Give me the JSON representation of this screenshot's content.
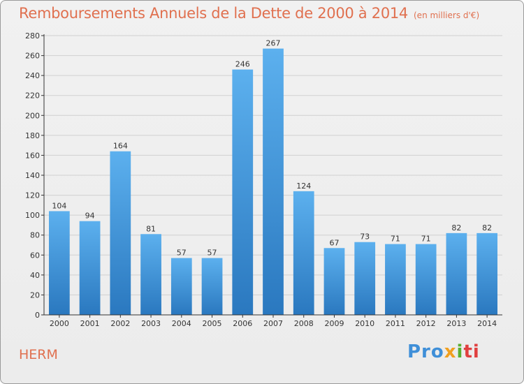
{
  "header": {
    "title": "Remboursements Annuels de la Dette de 2000 à 2014",
    "subtitle": "(en milliers d'€)"
  },
  "footer": {
    "commune": "HERM",
    "logo": {
      "p1": "Pro",
      "p2": "x",
      "p3": "i",
      "p4": "ti"
    }
  },
  "colors": {
    "title": "#e0704f",
    "bar_top": "#5cb0ee",
    "bar_bottom": "#2a78bf",
    "grid": "#d0d0d0",
    "axis": "#333333"
  },
  "chart_data": {
    "type": "bar",
    "title": "Remboursements Annuels de la Dette de 2000 à 2014",
    "subtitle": "(en milliers d'€)",
    "xlabel": "",
    "ylabel": "",
    "categories": [
      "2000",
      "2001",
      "2002",
      "2003",
      "2004",
      "2005",
      "2006",
      "2007",
      "2008",
      "2009",
      "2010",
      "2011",
      "2012",
      "2013",
      "2014"
    ],
    "values": [
      104,
      94,
      164,
      81,
      57,
      57,
      246,
      267,
      124,
      67,
      73,
      71,
      71,
      82,
      82
    ],
    "ylim": [
      0,
      280
    ],
    "yticks": [
      0,
      20,
      40,
      60,
      80,
      100,
      120,
      140,
      160,
      180,
      200,
      220,
      240,
      260,
      280
    ],
    "grid": true,
    "data_labels": true
  }
}
